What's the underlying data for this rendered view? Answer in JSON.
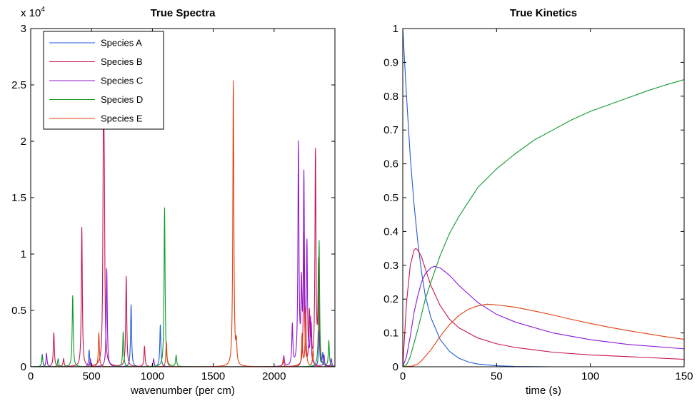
{
  "chart_data": [
    {
      "type": "line",
      "title": "True Spectra",
      "xlabel": "wavenumber (per cm)",
      "ylabel": "",
      "xlim": [
        0,
        2500
      ],
      "ylim": [
        0,
        30000
      ],
      "x_ticks": [
        0,
        500,
        1000,
        1500,
        2000
      ],
      "x_tick_labels": [
        "0",
        "500",
        "1000",
        "1500",
        "2000"
      ],
      "y_ticks": [
        0,
        5000,
        10000,
        15000,
        20000,
        25000,
        30000
      ],
      "y_tick_labels": [
        "0",
        "0.5",
        "1",
        "1.5",
        "2",
        "2.5",
        "3"
      ],
      "y_multiplier": {
        "base": "x 10",
        "exponent": "4"
      },
      "grid": false,
      "legend_position": "top-left",
      "peak_width": 5,
      "series": [
        {
          "name": "Species A",
          "color": "#1f5bd6",
          "peaks": [
            [
              95,
              1100
            ],
            [
              480,
              1500
            ],
            [
              825,
              5500
            ],
            [
              1065,
              3700
            ],
            [
              2370,
              3200
            ],
            [
              2400,
              1200
            ]
          ]
        },
        {
          "name": "Species B",
          "color": "#c8144f",
          "peaks": [
            [
              190,
              3000
            ],
            [
              270,
              700
            ],
            [
              420,
              12350
            ],
            [
              598,
              21500
            ],
            [
              605,
              11400
            ],
            [
              785,
              8000
            ],
            [
              935,
              1800
            ],
            [
              2245,
              11800
            ],
            [
              2290,
              4500
            ],
            [
              2305,
              3000
            ],
            [
              2340,
              18900
            ],
            [
              2365,
              8900
            ]
          ]
        },
        {
          "name": "Species C",
          "color": "#8c16d6",
          "peaks": [
            [
              130,
              1200
            ],
            [
              490,
              700
            ],
            [
              625,
              8700
            ],
            [
              1010,
              700
            ],
            [
              2080,
              900
            ],
            [
              2150,
              3600
            ],
            [
              2200,
              19500
            ],
            [
              2225,
              6500
            ],
            [
              2245,
              16400
            ],
            [
              2270,
              10400
            ],
            [
              2300,
              4000
            ],
            [
              2410,
              1000
            ],
            [
              2470,
              700
            ]
          ]
        },
        {
          "name": "Species D",
          "color": "#0d9a2a",
          "peaks": [
            [
              95,
              1000
            ],
            [
              225,
              700
            ],
            [
              345,
              6300
            ],
            [
              760,
              3100
            ],
            [
              1100,
              14100
            ],
            [
              1195,
              1000
            ],
            [
              2370,
              11200
            ],
            [
              2450,
              2300
            ]
          ]
        },
        {
          "name": "Species E",
          "color": "#e0400f",
          "peaks": [
            [
              560,
              3000
            ],
            [
              1115,
              2200
            ],
            [
              1665,
              25300
            ],
            [
              1690,
              1800
            ],
            [
              2075,
              700
            ],
            [
              2230,
              2800
            ],
            [
              2260,
              5200
            ],
            [
              2320,
              1500
            ]
          ]
        }
      ]
    },
    {
      "type": "line",
      "title": "True Kinetics",
      "xlabel": "time (s)",
      "ylabel": "",
      "xlim": [
        0,
        150
      ],
      "ylim": [
        0,
        1
      ],
      "x_ticks": [
        0,
        50,
        100,
        150
      ],
      "x_tick_labels": [
        "0",
        "50",
        "100",
        "150"
      ],
      "y_ticks": [
        0,
        0.1,
        0.2,
        0.3,
        0.4,
        0.5,
        0.6,
        0.7,
        0.8,
        0.9,
        1
      ],
      "y_tick_labels": [
        "0",
        "0.1",
        "0.2",
        "0.3",
        "0.4",
        "0.5",
        "0.6",
        "0.7",
        "0.8",
        "0.9",
        "1"
      ],
      "grid": false,
      "series": [
        {
          "color": "#1f5bd6",
          "x": [
            0,
            2,
            4,
            6,
            8,
            10,
            12,
            15,
            20,
            25,
            30,
            35,
            40,
            50,
            60,
            80,
            100,
            150
          ],
          "y": [
            1.0,
            0.8,
            0.62,
            0.48,
            0.37,
            0.28,
            0.21,
            0.145,
            0.08,
            0.045,
            0.025,
            0.014,
            0.008,
            0.003,
            0.001,
            0.0,
            0.0,
            0.0
          ]
        },
        {
          "color": "#c8144f",
          "x": [
            0,
            2,
            4,
            6,
            7,
            8,
            10,
            12,
            15,
            20,
            25,
            30,
            40,
            50,
            60,
            80,
            100,
            120,
            150
          ],
          "y": [
            0.0,
            0.19,
            0.3,
            0.345,
            0.35,
            0.345,
            0.325,
            0.29,
            0.24,
            0.18,
            0.14,
            0.115,
            0.085,
            0.068,
            0.057,
            0.043,
            0.035,
            0.03,
            0.022
          ]
        },
        {
          "color": "#8c16d6",
          "x": [
            0,
            2,
            4,
            6,
            8,
            10,
            12,
            15,
            17,
            20,
            25,
            30,
            40,
            50,
            60,
            80,
            100,
            120,
            150
          ],
          "y": [
            0.0,
            0.03,
            0.09,
            0.16,
            0.21,
            0.25,
            0.275,
            0.293,
            0.297,
            0.292,
            0.27,
            0.24,
            0.19,
            0.155,
            0.132,
            0.1,
            0.08,
            0.066,
            0.053
          ]
        },
        {
          "color": "#0d9a2a",
          "x": [
            0,
            2,
            4,
            6,
            8,
            10,
            12,
            15,
            20,
            25,
            30,
            40,
            50,
            60,
            70,
            80,
            90,
            100,
            110,
            120,
            130,
            140,
            150
          ],
          "y": [
            0.0,
            0.005,
            0.03,
            0.07,
            0.11,
            0.155,
            0.2,
            0.25,
            0.33,
            0.395,
            0.445,
            0.53,
            0.585,
            0.63,
            0.67,
            0.7,
            0.73,
            0.755,
            0.775,
            0.795,
            0.815,
            0.833,
            0.849
          ]
        },
        {
          "color": "#e0400f",
          "x": [
            0,
            5,
            8,
            10,
            15,
            20,
            25,
            30,
            35,
            40,
            45,
            50,
            60,
            70,
            80,
            90,
            100,
            110,
            120,
            130,
            140,
            150
          ],
          "y": [
            0.0,
            0.002,
            0.008,
            0.018,
            0.05,
            0.09,
            0.125,
            0.152,
            0.17,
            0.18,
            0.185,
            0.183,
            0.176,
            0.165,
            0.153,
            0.14,
            0.128,
            0.117,
            0.107,
            0.098,
            0.089,
            0.081
          ]
        }
      ]
    }
  ]
}
